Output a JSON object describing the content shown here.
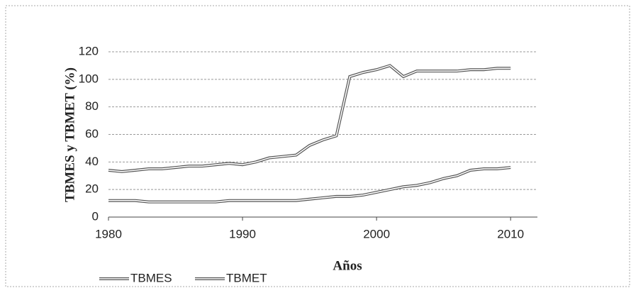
{
  "chart_data": {
    "type": "line",
    "xlabel": "Años",
    "ylabel": "TBMES y TBMET (%)",
    "x": [
      1980,
      1981,
      1982,
      1983,
      1984,
      1985,
      1986,
      1987,
      1988,
      1989,
      1990,
      1991,
      1992,
      1993,
      1994,
      1995,
      1996,
      1997,
      1998,
      1999,
      2000,
      2001,
      2002,
      2003,
      2004,
      2005,
      2006,
      2007,
      2008,
      2009,
      2010
    ],
    "series": [
      {
        "name": "TBMES",
        "color": "#555555",
        "values": [
          12,
          12,
          12,
          11,
          11,
          11,
          11,
          11,
          11,
          12,
          12,
          12,
          12,
          12,
          12,
          13,
          14,
          15,
          15,
          16,
          18,
          20,
          22,
          23,
          25,
          28,
          30,
          34,
          35,
          35,
          36
        ]
      },
      {
        "name": "TBMET",
        "color": "#555555",
        "values": [
          34,
          33,
          34,
          35,
          35,
          36,
          37,
          37,
          38,
          39,
          38,
          40,
          43,
          44,
          45,
          52,
          56,
          59,
          102,
          105,
          107,
          110,
          102,
          106,
          106,
          106,
          106,
          107,
          107,
          108,
          108
        ]
      }
    ],
    "xlim": [
      1980,
      2012
    ],
    "xticks": [
      1980,
      1990,
      2000,
      2010
    ],
    "ylim": [
      0,
      120
    ],
    "yticks": [
      0,
      20,
      40,
      60,
      80,
      100,
      120
    ],
    "grid": true,
    "legend": "bottom-left"
  }
}
